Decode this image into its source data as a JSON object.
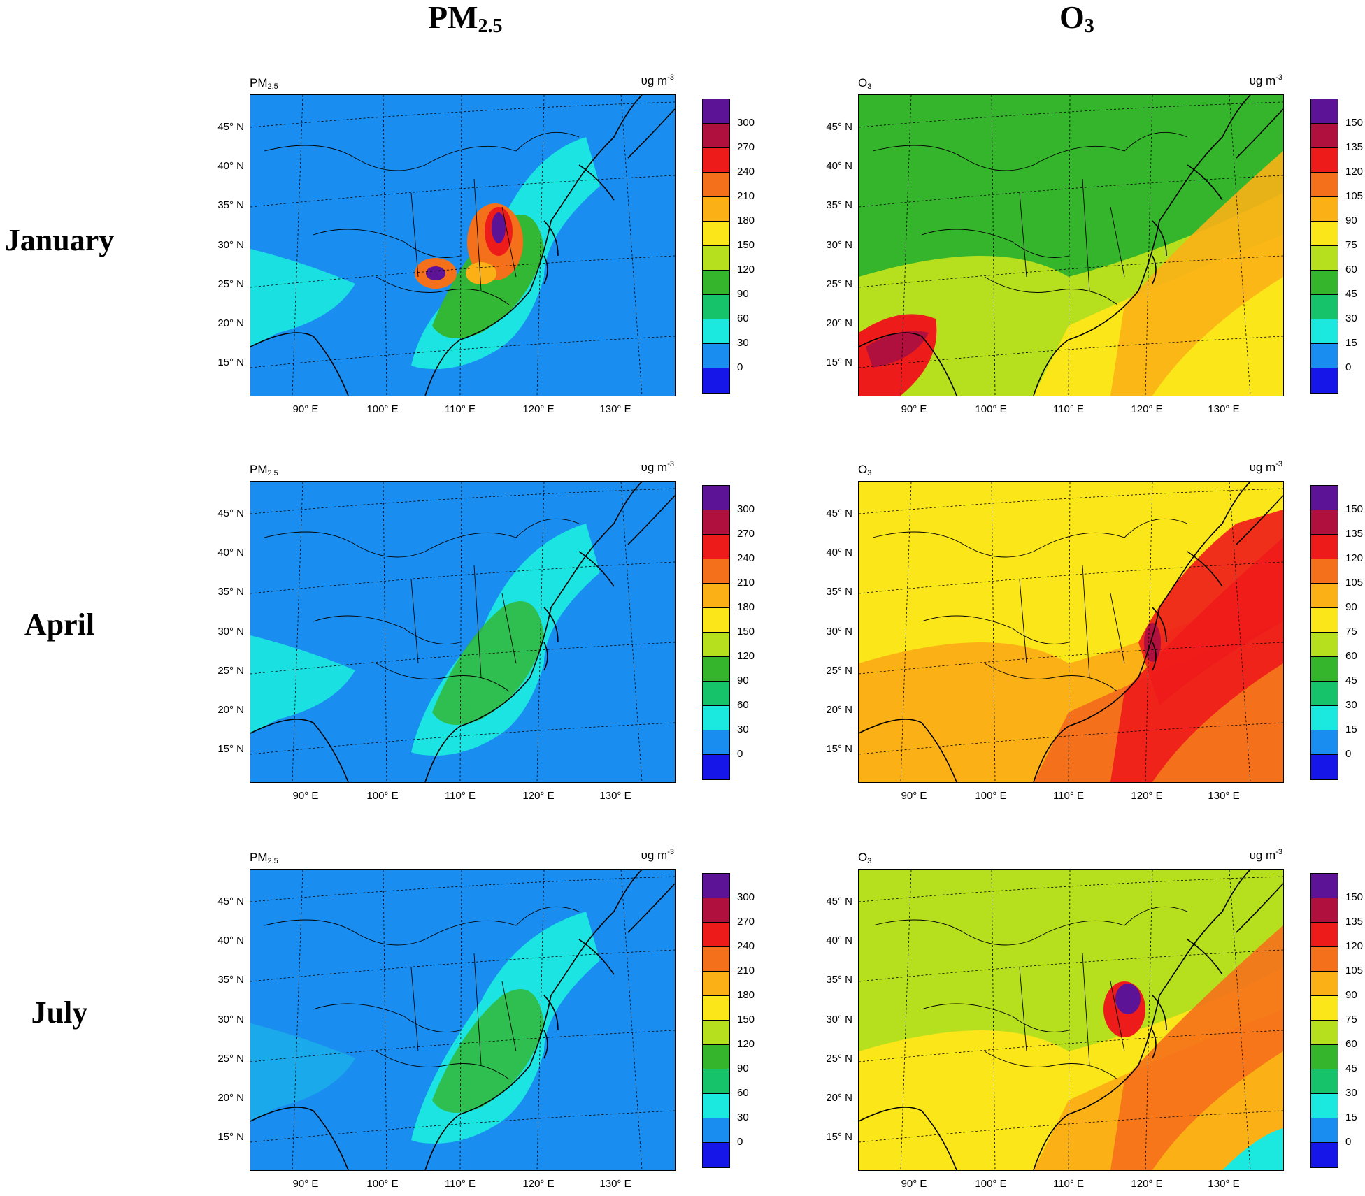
{
  "column_headers": {
    "pm25": {
      "main": "PM",
      "sub": "2.5"
    },
    "o3": {
      "main": "O",
      "sub": "3"
    }
  },
  "rows": [
    {
      "label": "January"
    },
    {
      "label": "April"
    },
    {
      "label": "July"
    }
  ],
  "pm25_panel": {
    "title_main": "PM",
    "title_sub": "2.5",
    "unit_main": "υg m",
    "unit_sup": "-3"
  },
  "o3_panel": {
    "title_main": "O",
    "title_sub": "3",
    "unit_main": "υg m",
    "unit_sup": "-3"
  },
  "lat_ticks": [
    "45° N",
    "40° N",
    "35° N",
    "30° N",
    "25° N",
    "20° N",
    "15° N"
  ],
  "lon_ticks": [
    "90° E",
    "100° E",
    "110° E",
    "120° E",
    "130° E"
  ],
  "pm25_colorbar": {
    "labels": [
      "300",
      "270",
      "240",
      "210",
      "180",
      "150",
      "120",
      "90",
      "60",
      "30",
      "0"
    ],
    "colors": [
      "#5c1396",
      "#b0103e",
      "#ee1b1b",
      "#f5701a",
      "#fbb116",
      "#fbe61a",
      "#b6df1e",
      "#35b52c",
      "#16c36a",
      "#1be9e0",
      "#1a8ef0",
      "#1616e8"
    ]
  },
  "o3_colorbar": {
    "labels": [
      "150",
      "135",
      "120",
      "105",
      "90",
      "75",
      "60",
      "45",
      "30",
      "15",
      "0"
    ],
    "colors": [
      "#5c1396",
      "#b0103e",
      "#ee1b1b",
      "#f5701a",
      "#fbb116",
      "#fbe61a",
      "#b6df1e",
      "#35b52c",
      "#16c36a",
      "#1be9e0",
      "#1a8ef0",
      "#1616e8"
    ]
  },
  "map_colors": {
    "ocean_pm": "#1a8ef0",
    "low_pm": "#1be9e0",
    "mid_pm": "#16c36a",
    "high_pm": "#35b52c"
  }
}
